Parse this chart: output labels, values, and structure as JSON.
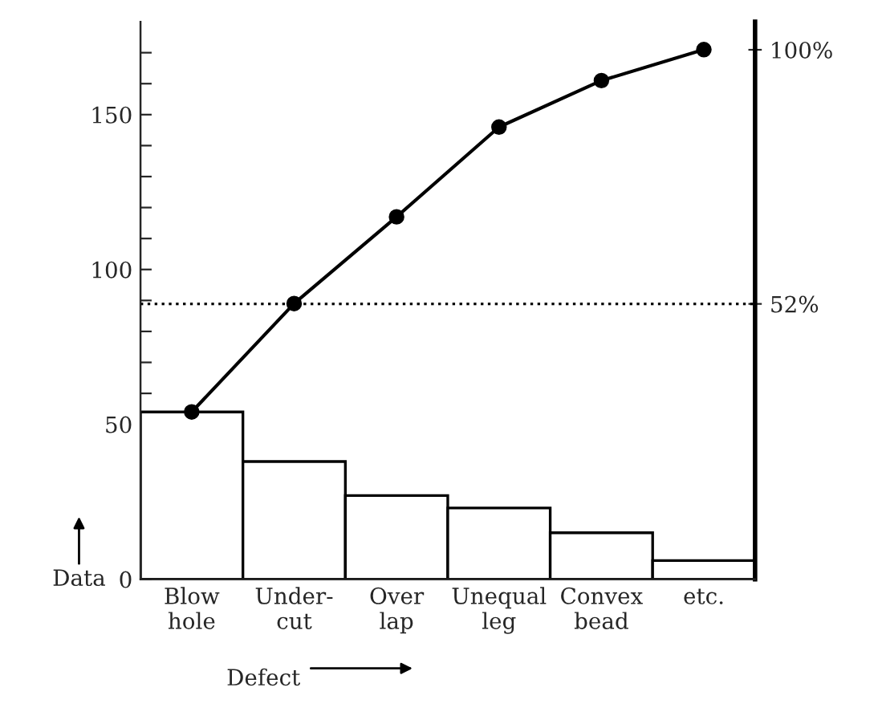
{
  "chart_data": {
    "type": "bar",
    "xlabel": "Defect",
    "ylabel": "Data",
    "categories": [
      "Blow\nhole",
      "Under-\ncut",
      "Over\nlap",
      "Unequal\nleg",
      "Convex\nbead",
      "etc."
    ],
    "series": [
      {
        "color": "#ffffff",
        "values": [
          54,
          38,
          27,
          23,
          15,
          6
        ]
      },
      {
        "type": "line",
        "color": "#000000",
        "values": [
          54,
          89,
          117,
          146,
          161,
          171
        ],
        "marker": "circle",
        "line_style": "solid"
      }
    ],
    "ylim": [
      0,
      180
    ],
    "yticks": [
      0,
      {
        "value": 10,
        "label": null
      },
      {
        "value": 20,
        "label": null
      },
      {
        "value": 30,
        "label": null
      },
      {
        "value": 40,
        "label": null
      },
      50,
      {
        "value": 60,
        "label": null
      },
      {
        "value": 70,
        "label": null
      },
      {
        "value": 80,
        "label": null
      },
      {
        "value": 90,
        "label": null
      },
      100,
      {
        "value": 110,
        "label": null
      },
      {
        "value": 120,
        "label": null
      },
      {
        "value": 130,
        "label": null
      },
      {
        "value": 140,
        "label": null
      },
      150,
      {
        "value": 160,
        "label": null
      },
      {
        "value": 170,
        "label": null
      }
    ],
    "y2lim": [
      0,
      105.3
    ],
    "y2ticks": [
      {
        "value": 52,
        "label": "52%"
      },
      {
        "value": 100,
        "label": "100%"
      }
    ],
    "ref_lines": [
      {
        "axis": "y2",
        "value": 52,
        "line_style": "dotted",
        "color": "#000000"
      }
    ],
    "grid": false,
    "legend": false
  }
}
